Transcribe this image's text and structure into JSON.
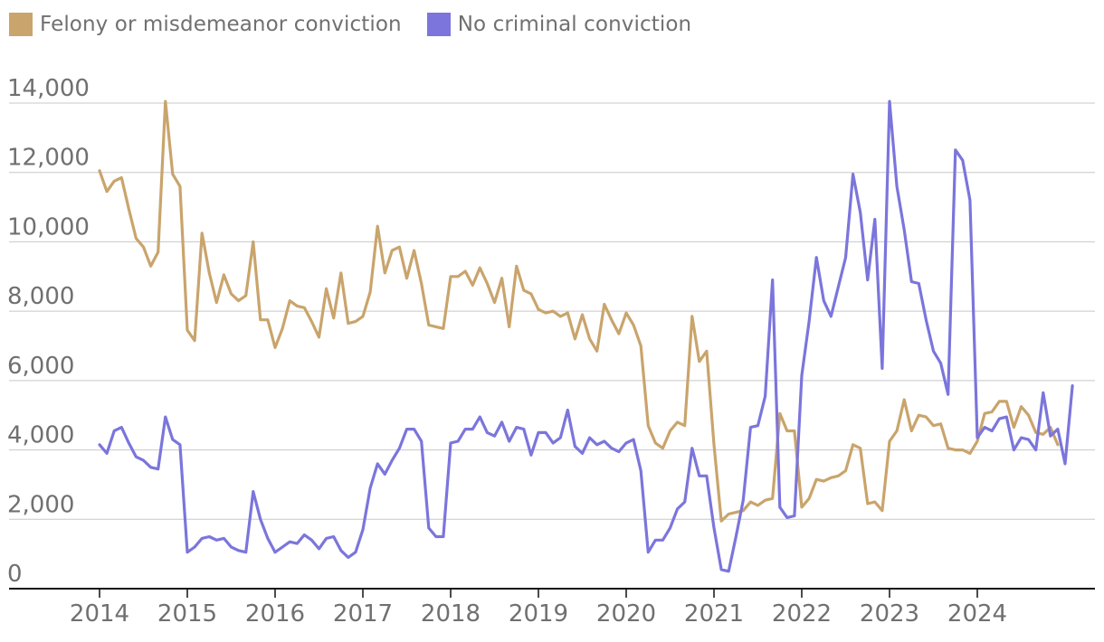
{
  "colors": {
    "felony": "#c9a46c",
    "no_conviction": "#7b75dc",
    "grid": "#c8c8c8",
    "axis": "#111111",
    "text": "#707070"
  },
  "legend": [
    {
      "label": "Felony or misdemeanor conviction",
      "color": "#c9a46c"
    },
    {
      "label": "No criminal conviction",
      "color": "#7b75dc"
    }
  ],
  "chart_data": {
    "type": "line",
    "title": "",
    "xlabel": "",
    "ylabel": "",
    "ylim": [
      0,
      14000
    ],
    "xlim": [
      2014,
      2025
    ],
    "grid": true,
    "legend_position": "top-left",
    "yticks": [
      0,
      2000,
      4000,
      6000,
      8000,
      10000,
      12000,
      14000
    ],
    "ytick_labels": [
      "0",
      "2,000",
      "4,000",
      "6,000",
      "8,000",
      "10,000",
      "12,000",
      "14,000"
    ],
    "xticks": [
      2014,
      2015,
      2016,
      2017,
      2018,
      2019,
      2020,
      2021,
      2022,
      2023,
      2024
    ],
    "xtick_labels": [
      "2014",
      "2015",
      "2016",
      "2017",
      "2018",
      "2019",
      "2020",
      "2021",
      "2022",
      "2023",
      "2024"
    ],
    "x_start": 2014,
    "x_step_months": 1,
    "series": [
      {
        "name": "Felony or misdemeanor conviction",
        "color": "#c9a46c",
        "values": [
          12050,
          11450,
          11750,
          11850,
          10950,
          10100,
          9850,
          9300,
          9700,
          14050,
          11950,
          11600,
          7450,
          7150,
          10250,
          9100,
          8250,
          9050,
          8500,
          8300,
          8450,
          10000,
          7750,
          7750,
          6950,
          7500,
          8300,
          8150,
          8100,
          7700,
          7250,
          8650,
          7800,
          9100,
          7650,
          7700,
          7850,
          8550,
          10450,
          9100,
          9750,
          9850,
          8950,
          9750,
          8800,
          7600,
          7550,
          7500,
          9000,
          9000,
          9150,
          8750,
          9250,
          8800,
          8250,
          8950,
          7550,
          9300,
          8600,
          8500,
          8050,
          7950,
          8000,
          7850,
          7950,
          7200,
          7900,
          7200,
          6850,
          8200,
          7750,
          7350,
          7950,
          7600,
          7000,
          4700,
          4200,
          4050,
          4550,
          4800,
          4700,
          7850,
          6550,
          6850,
          4150,
          1950,
          2150,
          2200,
          2250,
          2500,
          2400,
          2550,
          2600,
          5050,
          4550,
          4550,
          2350,
          2600,
          3150,
          3100,
          3200,
          3250,
          3400,
          4150,
          4050,
          2450,
          2500,
          2250,
          4250,
          4550,
          5450,
          4550,
          5000,
          4950,
          4700,
          4750,
          4050,
          4000,
          4000,
          3900,
          4250,
          5050,
          5100,
          5400,
          5400,
          4650,
          5250,
          5000,
          4500,
          4450,
          4650,
          4150
        ]
      },
      {
        "name": "No criminal conviction",
        "color": "#7b75dc",
        "values": [
          4150,
          3900,
          4550,
          4650,
          4200,
          3800,
          3700,
          3500,
          3450,
          4950,
          4300,
          4150,
          1050,
          1200,
          1450,
          1500,
          1400,
          1450,
          1200,
          1100,
          1050,
          2800,
          2000,
          1450,
          1050,
          1200,
          1350,
          1300,
          1550,
          1400,
          1150,
          1450,
          1500,
          1100,
          900,
          1050,
          1700,
          2900,
          3600,
          3300,
          3700,
          4050,
          4600,
          4600,
          4250,
          1750,
          1500,
          1500,
          4200,
          4250,
          4600,
          4600,
          4950,
          4500,
          4400,
          4800,
          4250,
          4650,
          4600,
          3850,
          4500,
          4500,
          4200,
          4350,
          5150,
          4100,
          3900,
          4350,
          4150,
          4250,
          4050,
          3950,
          4200,
          4300,
          3400,
          1050,
          1400,
          1400,
          1750,
          2300,
          2500,
          4050,
          3250,
          3250,
          1750,
          550,
          500,
          1500,
          2550,
          4650,
          4700,
          5550,
          8900,
          2350,
          2050,
          2100,
          6150,
          7700,
          9550,
          8300,
          7850,
          8700,
          9550,
          11950,
          10850,
          8900,
          10650,
          6350,
          14050,
          11600,
          10350,
          8850,
          8800,
          7750,
          6850,
          6500,
          5600,
          12650,
          12350,
          11200,
          4350,
          4650,
          4550,
          4900,
          4950,
          4000,
          4350,
          4300,
          4000,
          5650,
          4400,
          4600,
          3600,
          5850
        ]
      }
    ]
  }
}
